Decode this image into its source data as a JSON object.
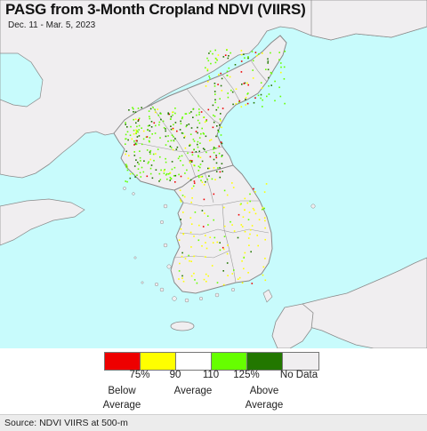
{
  "header": {
    "title": "PASG from 3-Month Cropland NDVI (VIIRS)",
    "date_range": "Dec. 11 - Mar. 5, 2023"
  },
  "map": {
    "ocean_color": "#c8fbfc",
    "land_color": "#f0eef0",
    "border_color": "#8a8a8a"
  },
  "legend": {
    "colors": [
      "#ee0000",
      "#ffff00",
      "#ffffff",
      "#66ff00",
      "#227700",
      "#f0eef0"
    ],
    "ticks": [
      "75%",
      "90",
      "110",
      "125%",
      "No Data"
    ],
    "below_average": [
      "Below",
      "Average"
    ],
    "average": "Average",
    "above_average": [
      "Above",
      "Average"
    ]
  },
  "footer": {
    "source": "Source: NDVI VIIRS at 500-m"
  }
}
